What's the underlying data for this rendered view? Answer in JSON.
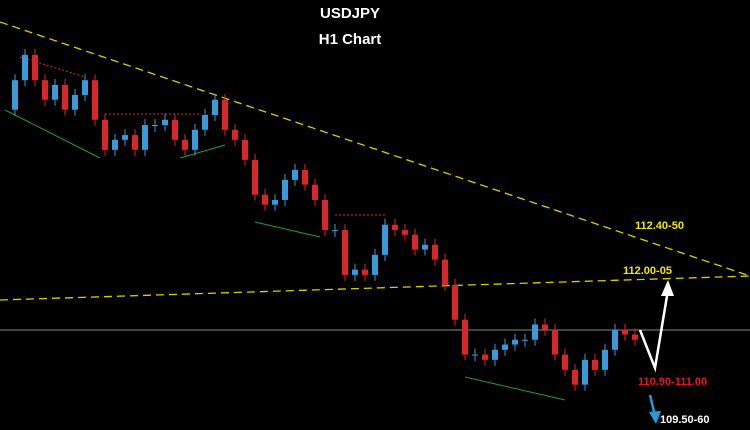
{
  "chart_data": {
    "type": "candlestick",
    "title": "USDJPY",
    "subtitle": "H1 Chart",
    "values": [
      115.37,
      115.93,
      116.41,
      115.93,
      115.56,
      115.84,
      115.37,
      115.65,
      115.93,
      115.18,
      114.61,
      114.8,
      114.89,
      114.61,
      115.08,
      115.08,
      115.18,
      114.8,
      114.61,
      114.99,
      115.27,
      115.56,
      114.99,
      114.8,
      114.42,
      113.76,
      113.57,
      113.66,
      114.04,
      114.23,
      113.95,
      113.66,
      113.09,
      113.09,
      112.24,
      112.34,
      112.24,
      112.62,
      113.19,
      113.09,
      113.0,
      112.72,
      112.81,
      112.53,
      112.05,
      111.39,
      110.73,
      110.73,
      110.63,
      110.82,
      110.92,
      111.01,
      111.01,
      111.3,
      111.2,
      110.73,
      110.44,
      110.16,
      110.63,
      110.44,
      110.82,
      111.2,
      111.11,
      111.01
    ],
    "up_color": "#3a9ad9",
    "down_color": "#d9262a",
    "ylim": [
      109.3,
      117.45
    ],
    "annotations": [
      {
        "text": "112.40-50",
        "color": "#f2e600"
      },
      {
        "text": "112.00-05",
        "color": "#f2e600"
      },
      {
        "text": "110.90-111.00",
        "color": "#e8141b"
      },
      {
        "text": "109.50-60",
        "color": "#ffffff"
      }
    ]
  }
}
